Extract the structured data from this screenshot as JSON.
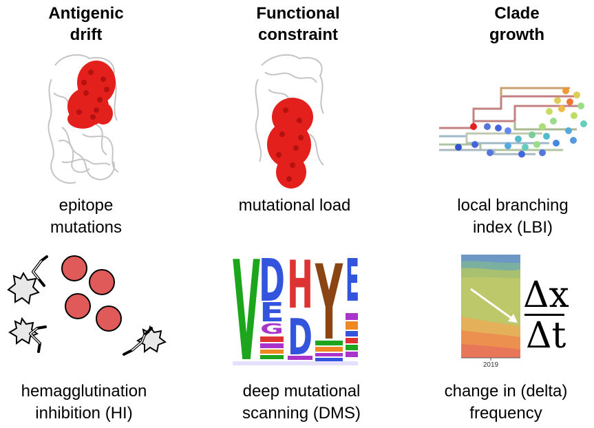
{
  "columns": [
    {
      "title_line1": "Antigenic",
      "title_line2": "drift",
      "label_line1": "epitope",
      "label_line2": "mutations"
    },
    {
      "title_line1": "Functional",
      "title_line2": "constraint",
      "label_line1": "mutational load",
      "label_line2": ""
    },
    {
      "title_line1": "Clade",
      "title_line2": "growth",
      "label_line1": "local branching",
      "label_line2": "index (LBI)"
    }
  ],
  "bottom_labels": [
    {
      "line1": "hemagglutination",
      "line2": "inhibition (HI)"
    },
    {
      "line1": "deep mutational",
      "line2": "scanning (DMS)"
    },
    {
      "line1": "change in (delta)",
      "line2": "frequency"
    }
  ],
  "delta_formula": {
    "numerator": "Δx",
    "denominator": "Δt"
  },
  "frequency_axis_tick": "2019",
  "logo_letters": [
    "V",
    "D",
    "H",
    "Y",
    "E"
  ],
  "colors": {
    "red_residue": "#e3201b",
    "red_cell": "#e05a5a",
    "protein_gray": "#c8c8c8"
  }
}
